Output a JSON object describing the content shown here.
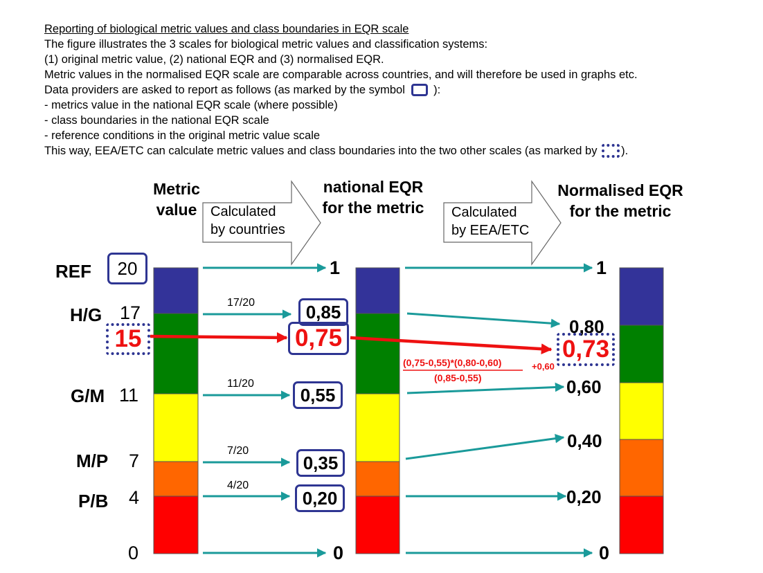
{
  "intro": {
    "heading": "Reporting of biological metric values and class boundaries in EQR scale",
    "line1": "The figure illustrates the 3 scales for biological metric values and classification systems:",
    "line2": "(1) original metric value, (2) national EQR and (3) normalised EQR.",
    "line3": "Metric values in the normalised EQR scale are comparable across countries, and will therefore be used in graphs etc.",
    "line4_before": "Data providers are asked to report as follows (as marked by the symbol",
    "line4_after": "):",
    "line5": "- metrics value in the national EQR scale (where possible)",
    "line6": "- class boundaries in the national EQR scale",
    "line7": "- reference conditions in the original metric value scale",
    "line8_before": "This way, EEA/ETC can calculate metric values and class boundaries into the two other scales (as marked by",
    "line8_after": ")."
  },
  "columns": {
    "metric_header_line1": "Metric",
    "metric_header_line2": "value",
    "national_header_line1": "national EQR",
    "national_header_line2": "for the metric",
    "normalised_header_line1": "Normalised EQR",
    "normalised_header_line2": "for the metric"
  },
  "big_arrows": {
    "left_line1": "Calculated",
    "left_line2": "by countries",
    "right_line1": "Calculated",
    "right_line2": "by EEA/ETC"
  },
  "boundaries": {
    "ref": "REF",
    "hg": "H/G",
    "gm": "G/M",
    "mp": "M/P",
    "pb": "P/B"
  },
  "metric_values": {
    "ref": "20",
    "hg": "17",
    "example": "15",
    "gm": "11",
    "mp": "7",
    "pb": "4",
    "zero": "0"
  },
  "fractions": {
    "hg": "17/20",
    "gm": "11/20",
    "mp": "7/20",
    "pb": "4/20"
  },
  "national_values": {
    "top": "1",
    "hg": "0,85",
    "example": "0,75",
    "gm": "0,55",
    "mp": "0,35",
    "pb": "0,20",
    "zero": "0"
  },
  "normalised_values": {
    "top": "1",
    "hg": "0,80",
    "example": "0,73",
    "gm": "0,60",
    "mp": "0,40",
    "pb": "0,20",
    "zero": "0"
  },
  "formula": {
    "numerator": "(0,75-0,55)*(0,80-0,60)",
    "denominator": "(0,85-0,55)",
    "addend": "+0,60"
  },
  "colors": {
    "high": "#333399",
    "good": "#008000",
    "moderate": "#ffff00",
    "poor": "#ff6600",
    "bad": "#ff0000",
    "arrow": "#1a9a9a",
    "highlight": "#ee1111",
    "box": "#2e3592"
  }
}
